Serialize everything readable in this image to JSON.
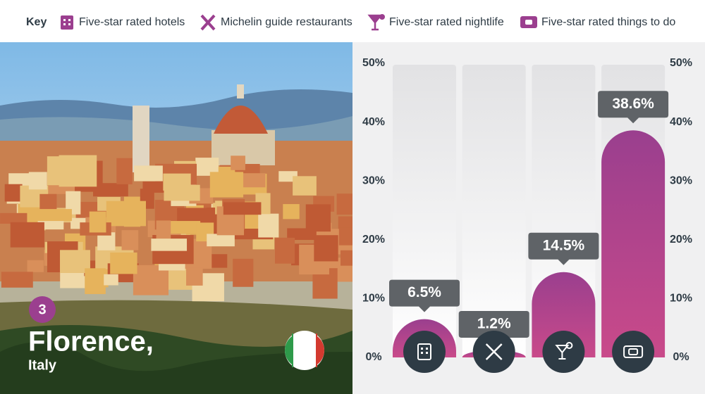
{
  "chart_data": {
    "type": "bar",
    "legend_title": "Key",
    "categories": [
      "Five-star rated hotels",
      "Michelin guide restaurants",
      "Five-star rated nightlife",
      "Five-star rated things to do"
    ],
    "values": [
      6.5,
      1.2,
      14.5,
      38.6
    ],
    "value_labels": [
      "6.5%",
      "1.2%",
      "14.5%",
      "38.6%"
    ],
    "color": "#a8408e",
    "ylim": [
      0,
      50
    ],
    "yticks": [
      {
        "value": 0,
        "label": "0%"
      },
      {
        "value": 10,
        "label": "10%"
      },
      {
        "value": 20,
        "label": "20%"
      },
      {
        "value": 30,
        "label": "30%"
      },
      {
        "value": 40,
        "label": "40%"
      },
      {
        "value": 50,
        "label": "50%"
      }
    ],
    "location": {
      "rank": 3,
      "city": "Florence,",
      "country": "Italy"
    }
  }
}
